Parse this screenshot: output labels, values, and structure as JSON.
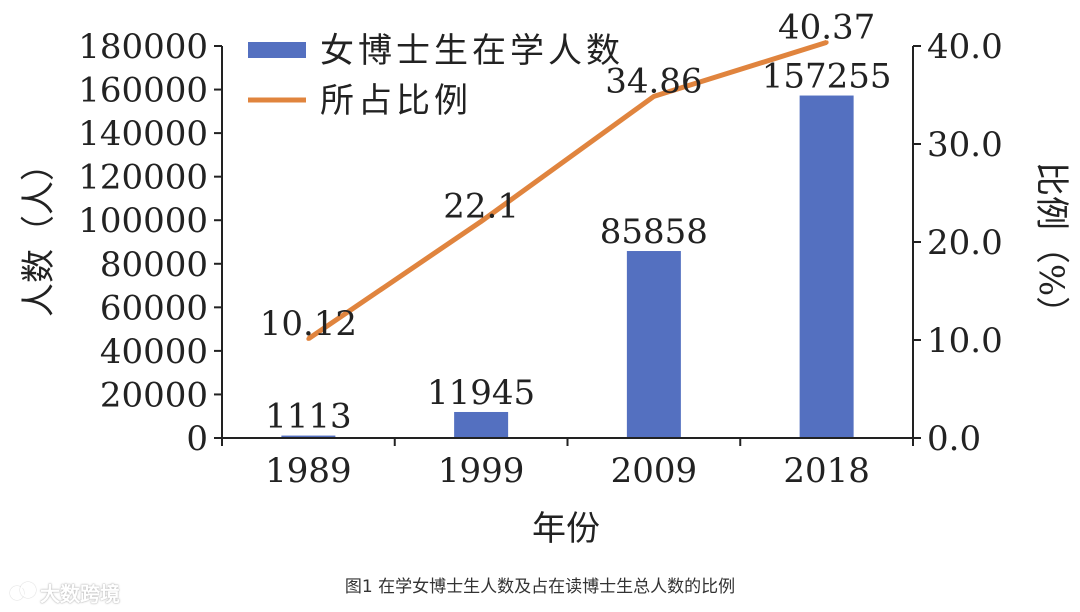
{
  "caption": "图1   在学女博士生人数及占在读博士生总人数的比例",
  "watermark": "大数跨境",
  "chart_data": {
    "type": "bar+line",
    "title": "",
    "categories": [
      "1989",
      "1999",
      "2009",
      "2018"
    ],
    "xlabel": "年份",
    "ylabel_left": "人数（人）",
    "ylabel_right": "比例（%）",
    "ylim_left": [
      0,
      180000
    ],
    "ylim_right": [
      0,
      40
    ],
    "yticks_left": [
      "0",
      "20000",
      "40000",
      "60000",
      "80000",
      "100000",
      "120000",
      "140000",
      "160000",
      "180000"
    ],
    "yticks_right": [
      "0.0",
      "10.0",
      "20.0",
      "30.0",
      "40.0"
    ],
    "legend_placement": "top-left",
    "grid": false,
    "series": [
      {
        "name": "女博士生在学人数",
        "type": "bar",
        "axis": "left",
        "color": "#5470c0",
        "values": [
          1113,
          11945,
          85858,
          157255
        ],
        "labels": [
          "1113",
          "11945",
          "85858",
          "157255"
        ]
      },
      {
        "name": "所占比例",
        "type": "line",
        "axis": "right",
        "color": "#e0843e",
        "values": [
          10.12,
          22.1,
          34.86,
          40.37
        ],
        "labels": [
          "10.12",
          "22.1",
          "34.86",
          "40.37"
        ]
      }
    ]
  }
}
